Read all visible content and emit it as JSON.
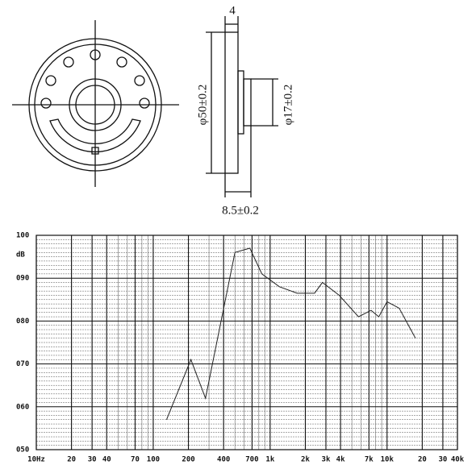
{
  "drawing": {
    "dimensions": [
      "4",
      "φ50±0.2",
      "φ17±0.2",
      "8.5±0.2"
    ]
  },
  "chart_data": {
    "type": "line",
    "y_unit": "dB",
    "log_x": true,
    "grid": true,
    "xlim": [
      10,
      40000
    ],
    "ylim": [
      50,
      100
    ],
    "xticks": [
      {
        "value": 10,
        "label": "10Hz"
      },
      20,
      30,
      40,
      70,
      100,
      200,
      400,
      700,
      {
        "value": 1000,
        "label": "1k"
      },
      {
        "value": 2000,
        "label": "2k"
      },
      {
        "value": 3000,
        "label": "3k"
      },
      {
        "value": 4000,
        "label": "4k"
      },
      {
        "value": 7000,
        "label": "7k"
      },
      {
        "value": 10000,
        "label": "10k"
      },
      {
        "value": 20000,
        "label": "20"
      },
      {
        "value": 30000,
        "label": "30"
      },
      {
        "value": 40000,
        "label": "40k"
      }
    ],
    "yticks": [
      {
        "value": 100,
        "label": "100"
      },
      {
        "value": 90,
        "label": "090"
      },
      {
        "value": 80,
        "label": "080"
      },
      {
        "value": 70,
        "label": "070"
      },
      {
        "value": 60,
        "label": "060"
      },
      {
        "value": 50,
        "label": "050"
      }
    ],
    "series": [
      {
        "color": "#222222",
        "x": [
          130,
          210,
          280,
          500,
          670,
          850,
          1200,
          1700,
          2400,
          2800,
          3900,
          5700,
          7300,
          8500,
          10000,
          12700,
          17500
        ],
        "values": [
          57,
          71,
          62,
          96,
          97,
          91,
          88,
          86.5,
          86.5,
          89,
          86,
          81,
          82.5,
          81,
          84.5,
          83,
          76
        ]
      }
    ]
  }
}
